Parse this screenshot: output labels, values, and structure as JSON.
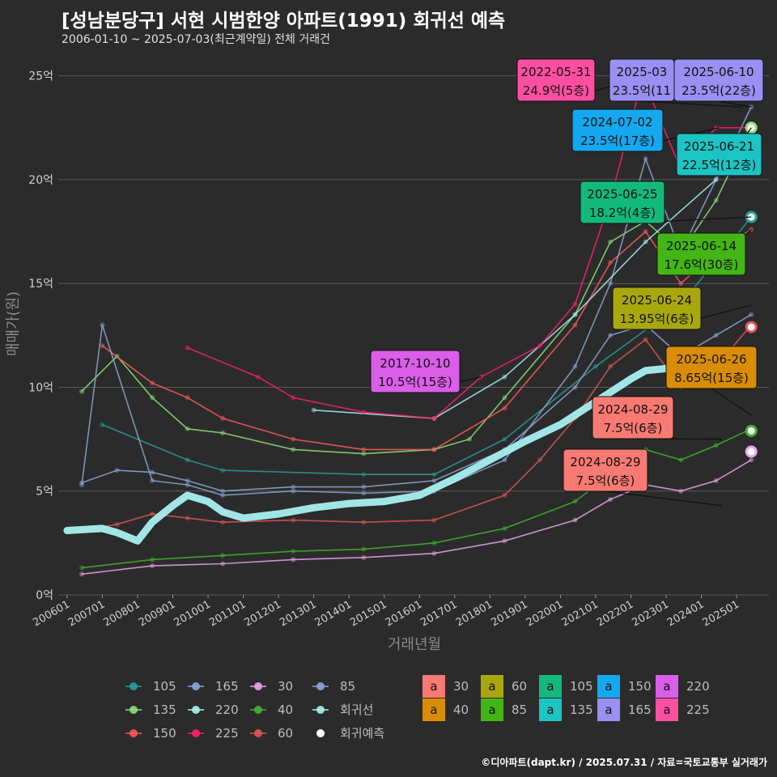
{
  "header": {
    "title": "[성남분당구] 서현 시범한양 아파트(1991) 회귀선 예측",
    "subtitle": "2006-01-10 ~ 2025-07-03(최근계약일) 전체 거래건"
  },
  "footer": {
    "credit": "©디아파트(dapt.kr) / 2025.07.31 / 자료=국토교통부 실거래가"
  },
  "colors": {
    "s105": "#2a9d9a",
    "s135": "#8ee07a",
    "s150": "#ff5a5a",
    "s165": "#8aa6d6",
    "s220": "#a8f0f0",
    "s225": "#ff1f6e",
    "s30": "#e9a6e9",
    "s40": "#3fb52a",
    "s60": "#e05555",
    "s85": "#8da6d6",
    "reg": "#a8f0f0",
    "pred": "#ffffff"
  },
  "chart_data": {
    "type": "line",
    "xlabel": "거래년월",
    "ylabel": "매매가(원)",
    "ylim": [
      0,
      26
    ],
    "xlim": [
      "2005-10",
      "2025-12"
    ],
    "y_ticks": [
      "0억",
      "5억",
      "10억",
      "15억",
      "20억",
      "25억"
    ],
    "x_ticks": [
      "200601",
      "200701",
      "200801",
      "200901",
      "201001",
      "201101",
      "201201",
      "201301",
      "201401",
      "201501",
      "201601",
      "201701",
      "201801",
      "201901",
      "202001",
      "202101",
      "202201",
      "202301",
      "202401",
      "202501"
    ],
    "series": [
      {
        "name": "105",
        "color_key": "s105",
        "points": [
          [
            "2007-01",
            8.2
          ],
          [
            "2009-06",
            6.5
          ],
          [
            "2010-06",
            6.0
          ],
          [
            "2014-06",
            5.8
          ],
          [
            "2016-06",
            5.8
          ],
          [
            "2018-06",
            7.5
          ],
          [
            "2021-01",
            11.0
          ],
          [
            "2023-06",
            14.0
          ],
          [
            "2025-06",
            18.2
          ]
        ]
      },
      {
        "name": "135",
        "color_key": "s135",
        "points": [
          [
            "2006-06",
            9.8
          ],
          [
            "2007-06",
            11.5
          ],
          [
            "2008-06",
            9.5
          ],
          [
            "2009-06",
            8.0
          ],
          [
            "2010-06",
            7.8
          ],
          [
            "2012-06",
            7.0
          ],
          [
            "2014-06",
            6.8
          ],
          [
            "2016-06",
            7.0
          ],
          [
            "2017-06",
            7.5
          ],
          [
            "2018-06",
            9.5
          ],
          [
            "2020-06",
            13.5
          ],
          [
            "2021-06",
            17.0
          ],
          [
            "2022-06",
            18.0
          ],
          [
            "2023-06",
            16.5
          ],
          [
            "2024-06",
            19.0
          ],
          [
            "2025-06",
            22.5
          ]
        ]
      },
      {
        "name": "150",
        "color_key": "s150",
        "points": [
          [
            "2007-01",
            12.0
          ],
          [
            "2008-06",
            10.2
          ],
          [
            "2009-06",
            9.5
          ],
          [
            "2010-06",
            8.5
          ],
          [
            "2012-06",
            7.5
          ],
          [
            "2014-06",
            7.0
          ],
          [
            "2016-06",
            7.0
          ],
          [
            "2018-06",
            9.0
          ],
          [
            "2020-06",
            13.0
          ],
          [
            "2021-06",
            16.0
          ],
          [
            "2022-06",
            17.5
          ],
          [
            "2023-06",
            15.0
          ],
          [
            "2024-06",
            16.5
          ],
          [
            "2025-06",
            17.6
          ]
        ]
      },
      {
        "name": "165",
        "color_key": "s165",
        "points": [
          [
            "2006-06",
            5.3
          ],
          [
            "2007-01",
            13.0
          ],
          [
            "2008-06",
            5.5
          ],
          [
            "2009-06",
            5.3
          ],
          [
            "2010-06",
            4.8
          ],
          [
            "2012-06",
            5.0
          ],
          [
            "2014-06",
            4.9
          ],
          [
            "2016-06",
            5.0
          ],
          [
            "2018-06",
            6.5
          ],
          [
            "2020-06",
            11.0
          ],
          [
            "2021-06",
            15.0
          ],
          [
            "2022-06",
            21.0
          ],
          [
            "2023-06",
            16.5
          ],
          [
            "2024-06",
            20.0
          ],
          [
            "2025-06",
            23.5
          ]
        ]
      },
      {
        "name": "220",
        "color_key": "s220",
        "points": [
          [
            "2013-01",
            8.9
          ],
          [
            "2016-06",
            8.5
          ],
          [
            "2018-06",
            10.5
          ],
          [
            "2020-06",
            13.5
          ],
          [
            "2022-06",
            17.0
          ],
          [
            "2024-06",
            20.0
          ]
        ]
      },
      {
        "name": "225",
        "color_key": "s225",
        "points": [
          [
            "2009-06",
            11.9
          ],
          [
            "2011-06",
            10.5
          ],
          [
            "2012-06",
            9.5
          ],
          [
            "2014-06",
            8.8
          ],
          [
            "2016-06",
            8.5
          ],
          [
            "2017-10",
            10.5
          ],
          [
            "2019-06",
            12.0
          ],
          [
            "2020-06",
            14.0
          ],
          [
            "2021-06",
            19.0
          ],
          [
            "2022-05",
            24.9
          ],
          [
            "2023-06",
            20.5
          ],
          [
            "2024-06",
            22.5
          ],
          [
            "2025-06",
            22.5
          ]
        ]
      },
      {
        "name": "30",
        "color_key": "s30",
        "points": [
          [
            "2006-06",
            1.0
          ],
          [
            "2008-06",
            1.4
          ],
          [
            "2010-06",
            1.5
          ],
          [
            "2012-06",
            1.7
          ],
          [
            "2014-06",
            1.8
          ],
          [
            "2016-06",
            2.0
          ],
          [
            "2018-06",
            2.6
          ],
          [
            "2020-06",
            3.6
          ],
          [
            "2021-06",
            4.6
          ],
          [
            "2022-06",
            5.3
          ],
          [
            "2023-06",
            5.0
          ],
          [
            "2024-06",
            5.5
          ],
          [
            "2025-06",
            6.5
          ]
        ]
      },
      {
        "name": "40",
        "color_key": "s40",
        "points": [
          [
            "2006-06",
            1.3
          ],
          [
            "2008-06",
            1.7
          ],
          [
            "2010-06",
            1.9
          ],
          [
            "2012-06",
            2.1
          ],
          [
            "2014-06",
            2.2
          ],
          [
            "2016-06",
            2.5
          ],
          [
            "2018-06",
            3.2
          ],
          [
            "2020-06",
            4.5
          ],
          [
            "2021-06",
            5.8
          ],
          [
            "2022-06",
            7.0
          ],
          [
            "2023-06",
            6.5
          ],
          [
            "2024-06",
            7.2
          ],
          [
            "2025-06",
            8.0
          ]
        ]
      },
      {
        "name": "60",
        "color_key": "s60",
        "points": [
          [
            "2006-06",
            3.1
          ],
          [
            "2007-06",
            3.4
          ],
          [
            "2008-06",
            3.9
          ],
          [
            "2009-06",
            3.7
          ],
          [
            "2010-06",
            3.5
          ],
          [
            "2012-06",
            3.6
          ],
          [
            "2014-06",
            3.5
          ],
          [
            "2016-06",
            3.6
          ],
          [
            "2018-06",
            4.8
          ],
          [
            "2019-06",
            6.5
          ],
          [
            "2020-06",
            8.5
          ],
          [
            "2021-06",
            11.0
          ],
          [
            "2022-06",
            12.3
          ],
          [
            "2023-06",
            10.0
          ],
          [
            "2024-06",
            11.0
          ],
          [
            "2025-06",
            13.0
          ]
        ]
      },
      {
        "name": "85",
        "color_key": "s85",
        "points": [
          [
            "2006-06",
            5.4
          ],
          [
            "2007-06",
            6.0
          ],
          [
            "2008-06",
            5.9
          ],
          [
            "2009-06",
            5.5
          ],
          [
            "2010-06",
            5.0
          ],
          [
            "2012-06",
            5.2
          ],
          [
            "2014-06",
            5.2
          ],
          [
            "2016-06",
            5.5
          ],
          [
            "2018-06",
            7.0
          ],
          [
            "2020-06",
            10.0
          ],
          [
            "2021-06",
            12.5
          ],
          [
            "2022-06",
            13.0
          ],
          [
            "2023-06",
            11.5
          ],
          [
            "2024-06",
            12.5
          ],
          [
            "2025-06",
            13.5
          ]
        ]
      },
      {
        "name": "회귀선",
        "color_key": "reg",
        "points": [
          [
            "2006-01",
            3.1
          ],
          [
            "2007-01",
            3.2
          ],
          [
            "2007-06",
            3.0
          ],
          [
            "2008-01",
            2.6
          ],
          [
            "2008-06",
            3.5
          ],
          [
            "2009-01",
            4.3
          ],
          [
            "2009-06",
            4.8
          ],
          [
            "2010-01",
            4.5
          ],
          [
            "2010-06",
            4.0
          ],
          [
            "2011-01",
            3.7
          ],
          [
            "2012-01",
            3.9
          ],
          [
            "2013-01",
            4.2
          ],
          [
            "2014-01",
            4.4
          ],
          [
            "2015-01",
            4.5
          ],
          [
            "2016-01",
            4.8
          ],
          [
            "2017-01",
            5.6
          ],
          [
            "2018-01",
            6.5
          ],
          [
            "2019-01",
            7.4
          ],
          [
            "2020-01",
            8.2
          ],
          [
            "2021-01",
            9.3
          ],
          [
            "2022-01",
            10.4
          ],
          [
            "2022-06",
            10.8
          ],
          [
            "2023-01",
            10.9
          ],
          [
            "2024-01",
            10.8
          ],
          [
            "2025-01",
            11.3
          ]
        ]
      }
    ],
    "predictions": [
      {
        "series": "105",
        "x": "2025-06",
        "y": 18.2
      },
      {
        "series": "135",
        "x": "2025-06",
        "y": 22.5
      },
      {
        "series": "60",
        "x": "2025-06",
        "y": 12.9
      },
      {
        "series": "40",
        "x": "2025-06",
        "y": 7.9
      },
      {
        "series": "30",
        "x": "2025-06",
        "y": 6.9
      }
    ],
    "annotations": [
      {
        "date": "2022-05-31",
        "price": "24.9억(5층)",
        "fill": "#ff4fa3",
        "tx": "2022-05",
        "ty": 24.9
      },
      {
        "date": "2025-03",
        "price": "23.5억(11",
        "fill": "#9a8ff2",
        "tx": "2025-03",
        "ty": 23.5
      },
      {
        "date": "2025-06-10",
        "price": "23.5억(22층)",
        "fill": "#9a8ff2",
        "tx": "2025-06",
        "ty": 23.5
      },
      {
        "date": "2024-07-02",
        "price": "23.5억(17층)",
        "fill": "#14a8f0",
        "tx": "2024-07",
        "ty": 22.5
      },
      {
        "date": "2025-06-21",
        "price": "22.5억(12층)",
        "fill": "#1cc4c4",
        "tx": "2025-06",
        "ty": 22.5
      },
      {
        "date": "2025-06-25",
        "price": "18.2억(4층)",
        "fill": "#12b97a",
        "tx": "2025-06",
        "ty": 18.2
      },
      {
        "date": "2025-06-14",
        "price": "17.6억(30층)",
        "fill": "#43b514",
        "tx": "2025-06",
        "ty": 17.6
      },
      {
        "date": "2025-06-24",
        "price": "13.95억(6층)",
        "fill": "#a9a70e",
        "tx": "2025-06",
        "ty": 13.95
      },
      {
        "date": "2017-10-10",
        "price": "10.5억(15층)",
        "fill": "#db5ee8",
        "tx": "2017-10",
        "ty": 10.5
      },
      {
        "date": "2025-06-26",
        "price": "8.65억(15층)",
        "fill": "#d98d05",
        "tx": "2025-06",
        "ty": 8.65
      },
      {
        "date": "2024-08-29",
        "price": "7.5억(6층)",
        "fill": "#f87a72",
        "tx": "2024-08",
        "ty": 7.5
      },
      {
        "date": "2024-08-29",
        "price": "7.5억(6층)",
        "fill": "#f87a72",
        "tx": "2024-08",
        "ty": 4.3
      }
    ],
    "legend_line": [
      {
        "label": "105",
        "color_key": "s105"
      },
      {
        "label": "165",
        "color_key": "s165"
      },
      {
        "label": "30",
        "color_key": "s30"
      },
      {
        "label": "85",
        "color_key": "s85"
      },
      {
        "label": "135",
        "color_key": "s135"
      },
      {
        "label": "220",
        "color_key": "s220"
      },
      {
        "label": "40",
        "color_key": "s40"
      },
      {
        "label": "회귀선",
        "color_key": "reg"
      },
      {
        "label": "150",
        "color_key": "s150"
      },
      {
        "label": "225",
        "color_key": "s225"
      },
      {
        "label": "60",
        "color_key": "s60"
      },
      {
        "label": "회귀예측",
        "color_key": "pred"
      }
    ],
    "legend_box": [
      {
        "label": "30",
        "fill": "#f87a72"
      },
      {
        "label": "60",
        "fill": "#a9a70e"
      },
      {
        "label": "105",
        "fill": "#12b97a"
      },
      {
        "label": "150",
        "fill": "#14a8f0"
      },
      {
        "label": "220",
        "fill": "#db5ee8"
      },
      {
        "label": "40",
        "fill": "#d98d05"
      },
      {
        "label": "85",
        "fill": "#43b514"
      },
      {
        "label": "135",
        "fill": "#1cc4c4"
      },
      {
        "label": "165",
        "fill": "#9a8ff2"
      },
      {
        "label": "225",
        "fill": "#ff4fa3"
      }
    ],
    "legend_box_glyph": "a"
  }
}
